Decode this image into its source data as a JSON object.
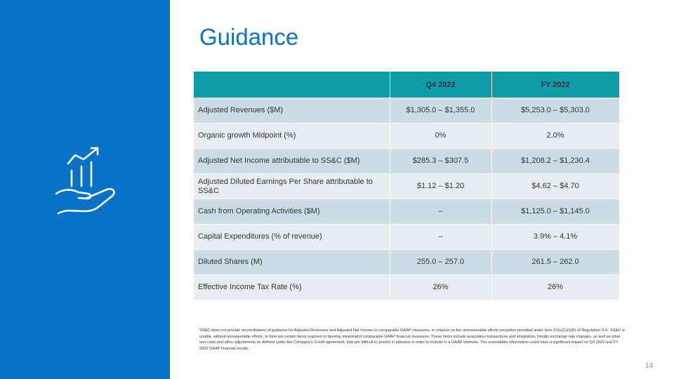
{
  "slide": {
    "title": "Guidance",
    "page_number": "14",
    "colors": {
      "sidebar": "#0872c6",
      "header": "#0e9aa7",
      "row_dark": "#cedde5",
      "row_light": "#e7eef1"
    },
    "icon": "hand-growth-chart-icon"
  },
  "table": {
    "headers": [
      "",
      "Q4 2022",
      "FY 2022"
    ],
    "rows": [
      [
        "Adjusted Revenues ($M)",
        "$1,305.0 – $1,355.0",
        "$5,253.0 – $5,303.0"
      ],
      [
        "Organic growth Midpoint (%)",
        "0%",
        "2.0%"
      ],
      [
        "Adjusted Net Income attributable to SS&C ($M)",
        "$285.3 – $307.5",
        "$1,208.2 – $1,230.4"
      ],
      [
        "Adjusted Diluted Earnings Per Share attributable to SS&C",
        "$1.12 – $1.20",
        "$4.62 – $4.70"
      ],
      [
        "Cash from Operating Activities ($M)",
        "–",
        "$1,125.0 – $1,145.0"
      ],
      [
        "Capital Expenditures (% of revenue)",
        "–",
        "3.9% – 4.1%"
      ],
      [
        "Diluted Shares (M)",
        "255.0 – 257.0",
        "261.5 – 262.0"
      ],
      [
        "Effective Income Tax Rate (%)",
        "26%",
        "26%"
      ]
    ]
  },
  "footnote": "SS&C does not provide reconciliations of guidance for Adjusted Revenues and Adjusted Net Income to comparable GAAP measures, in reliance on the unreasonable efforts exception provided under Item 10(e)(1)(i)(B) of Regulation S-K.  SS&C is unable, without unreasonable efforts, to forecast certain items required to develop meaningful comparable GAAP financial measures.  These items include acquisition transactions and integration, foreign exchange rate changes, as well as other non-cash and other adjustments as defined under the Company's Credit agreement, that are difficult to predict in advance in order to include in a GAAP estimate.  The unavailable information could have a significant impact on Q4 2022 and FY 2022 GAAP financial results."
}
